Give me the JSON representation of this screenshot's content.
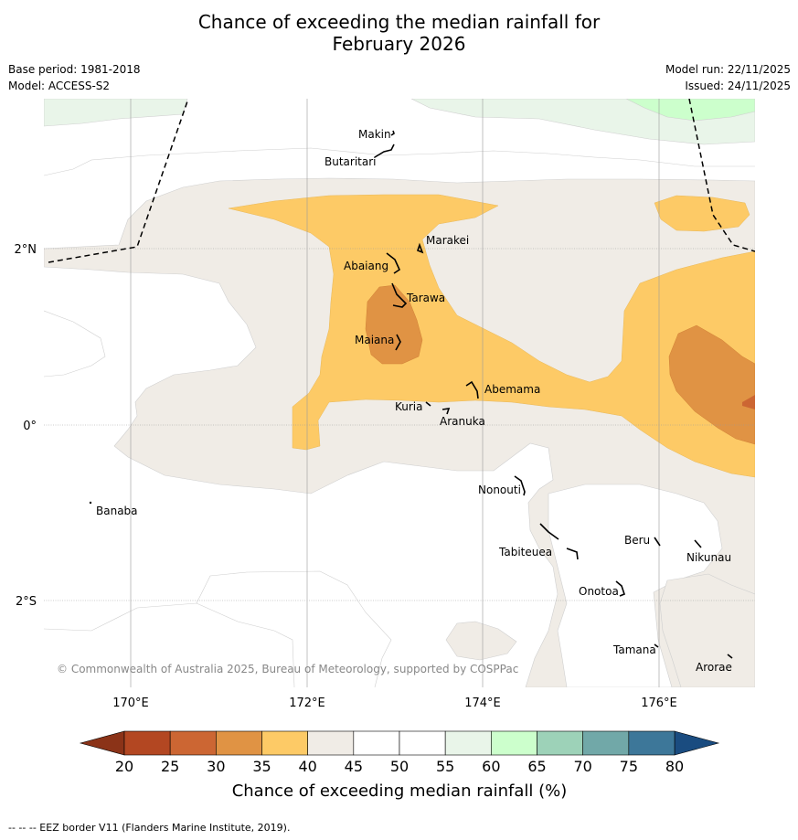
{
  "header": {
    "title_line1": "Chance of exceeding the median rainfall for",
    "title_line2": "February 2026",
    "base_period": "Base period: 1981-2018",
    "model": "Model: ACCESS-S2",
    "model_run": "Model run: 22/11/2025",
    "issued": "Issued: 24/11/2025"
  },
  "map": {
    "lat_labels": [
      "2°N",
      "0°",
      "2°S"
    ],
    "lon_labels": [
      "170°E",
      "172°E",
      "174°E",
      "176°E"
    ],
    "places": [
      "Makin",
      "Butaritari",
      "Marakei",
      "Abaiang",
      "Tarawa",
      "Maiana",
      "Abemama",
      "Kuria",
      "Aranuka",
      "Nonouti",
      "Banaba",
      "Beru",
      "Tabiteuea",
      "Nikunau",
      "Onotoa",
      "Tamana",
      "Arorae"
    ],
    "copyright": "© Commonwealth of Australia 2025, Bureau of Meteorology, supported by COSPPac"
  },
  "colorbar": {
    "ticks": [
      "20",
      "25",
      "30",
      "35",
      "40",
      "45",
      "50",
      "55",
      "60",
      "65",
      "70",
      "75",
      "80"
    ],
    "colors": [
      "#b34722",
      "#cc6633",
      "#e09344",
      "#fdca66",
      "#f0ece6",
      "#ffffff",
      "#ffffff",
      "#e9f5e9",
      "#ccffcc",
      "#9dd2b8",
      "#71a8a8",
      "#3d7799"
    ],
    "low_extend_color": "#8b3318",
    "high_extend_color": "#1a4c80",
    "title": "Chance of exceeding median rainfall (%)"
  },
  "footer": {
    "legend": "-- -- -- EEZ border V11 (Flanders Marine Institute, 2019)."
  }
}
